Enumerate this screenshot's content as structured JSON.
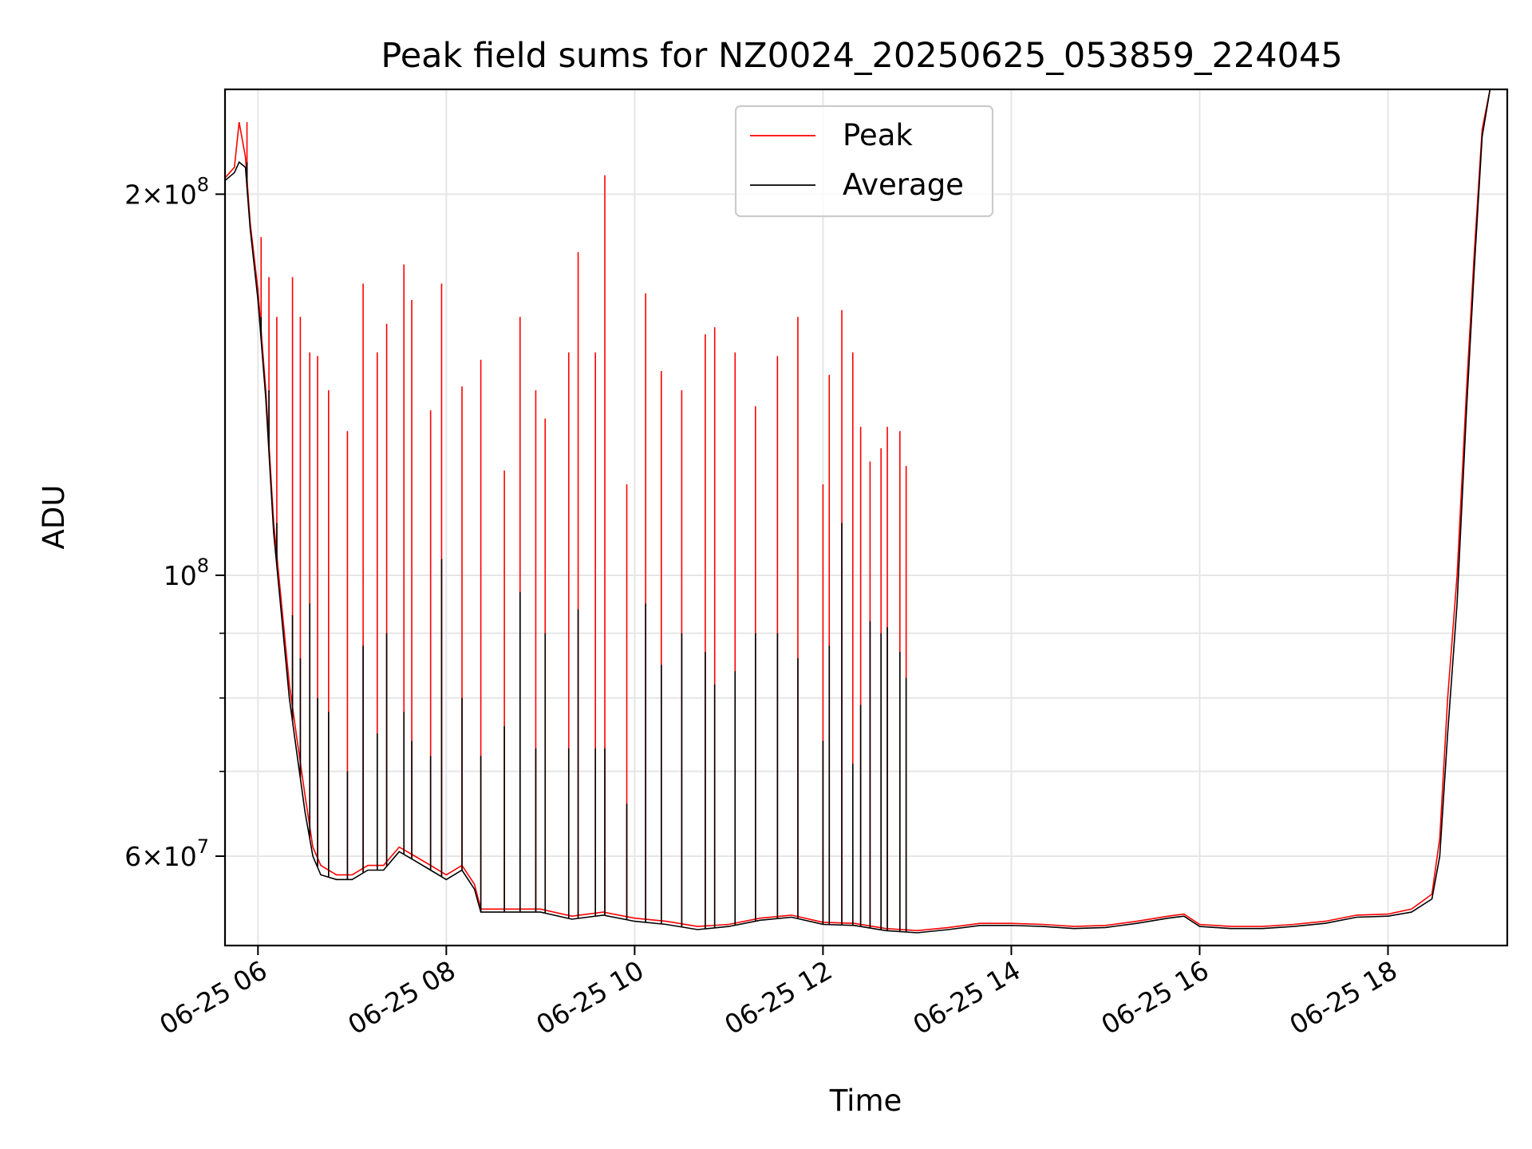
{
  "chart_data": {
    "type": "line",
    "title": "Peak field sums for NZ0024_20250625_053859_224045",
    "xlabel": "Time",
    "ylabel": "ADU",
    "y_scale": "log",
    "ylim": [
      51000000,
      242000000
    ],
    "xlim": [
      "2025-06-25 05:39",
      "2025-06-25 19:16"
    ],
    "x_ticks": [
      {
        "t": "2025-06-25 06:00",
        "label": "06-25 06"
      },
      {
        "t": "2025-06-25 08:00",
        "label": "06-25 08"
      },
      {
        "t": "2025-06-25 10:00",
        "label": "06-25 10"
      },
      {
        "t": "2025-06-25 12:00",
        "label": "06-25 12"
      },
      {
        "t": "2025-06-25 14:00",
        "label": "06-25 14"
      },
      {
        "t": "2025-06-25 16:00",
        "label": "06-25 16"
      },
      {
        "t": "2025-06-25 18:00",
        "label": "06-25 18"
      }
    ],
    "y_ticks_major": [
      {
        "value": 60000000,
        "mant": "6",
        "exp": "7"
      },
      {
        "value": 100000000,
        "mant": "",
        "exp": "8"
      },
      {
        "value": 200000000,
        "mant": "2",
        "exp": "8"
      }
    ],
    "y_ticks_minor": [
      70000000,
      80000000,
      90000000
    ],
    "grid": true,
    "legend_position": "upper-center",
    "series": [
      {
        "name": "Peak",
        "color": "#ff0000",
        "points": [
          [
            "2025-06-25 05:39",
            206000000
          ],
          [
            "2025-06-25 05:45",
            210000000
          ],
          [
            "2025-06-25 05:48",
            228000000
          ],
          [
            "2025-06-25 05:52",
            214000000
          ],
          [
            "2025-06-25 05:55",
            190000000
          ],
          [
            "2025-06-25 06:00",
            168000000
          ],
          [
            "2025-06-25 06:05",
            140000000
          ],
          [
            "2025-06-25 06:10",
            110000000
          ],
          [
            "2025-06-25 06:15",
            95000000
          ],
          [
            "2025-06-25 06:20",
            82000000
          ],
          [
            "2025-06-25 06:25",
            74000000
          ],
          [
            "2025-06-25 06:30",
            67000000
          ],
          [
            "2025-06-25 06:35",
            61000000
          ],
          [
            "2025-06-25 06:40",
            59000000
          ],
          [
            "2025-06-25 06:50",
            58000000
          ],
          [
            "2025-06-25 07:00",
            58000000
          ],
          [
            "2025-06-25 07:10",
            59000000
          ],
          [
            "2025-06-25 07:20",
            59000000
          ],
          [
            "2025-06-25 07:30",
            61000000
          ],
          [
            "2025-06-25 07:40",
            60000000
          ],
          [
            "2025-06-25 07:50",
            59000000
          ],
          [
            "2025-06-25 08:00",
            58000000
          ],
          [
            "2025-06-25 08:10",
            59000000
          ],
          [
            "2025-06-25 08:18",
            57000000
          ],
          [
            "2025-06-25 08:22",
            54500000
          ],
          [
            "2025-06-25 08:40",
            54500000
          ],
          [
            "2025-06-25 09:00",
            54500000
          ],
          [
            "2025-06-25 09:20",
            53800000
          ],
          [
            "2025-06-25 09:40",
            54200000
          ],
          [
            "2025-06-25 10:00",
            53600000
          ],
          [
            "2025-06-25 10:20",
            53300000
          ],
          [
            "2025-06-25 10:40",
            52800000
          ],
          [
            "2025-06-25 11:00",
            53000000
          ],
          [
            "2025-06-25 11:20",
            53600000
          ],
          [
            "2025-06-25 11:40",
            53900000
          ],
          [
            "2025-06-25 12:00",
            53200000
          ],
          [
            "2025-06-25 12:20",
            53100000
          ],
          [
            "2025-06-25 12:40",
            52600000
          ],
          [
            "2025-06-25 13:00",
            52400000
          ],
          [
            "2025-06-25 13:20",
            52700000
          ],
          [
            "2025-06-25 13:40",
            53100000
          ],
          [
            "2025-06-25 14:00",
            53100000
          ],
          [
            "2025-06-25 14:20",
            53000000
          ],
          [
            "2025-06-25 14:40",
            52800000
          ],
          [
            "2025-06-25 15:00",
            52900000
          ],
          [
            "2025-06-25 15:20",
            53300000
          ],
          [
            "2025-06-25 15:40",
            53800000
          ],
          [
            "2025-06-25 15:50",
            54000000
          ],
          [
            "2025-06-25 16:00",
            53000000
          ],
          [
            "2025-06-25 16:20",
            52800000
          ],
          [
            "2025-06-25 16:40",
            52800000
          ],
          [
            "2025-06-25 17:00",
            53000000
          ],
          [
            "2025-06-25 17:20",
            53300000
          ],
          [
            "2025-06-25 17:40",
            53900000
          ],
          [
            "2025-06-25 18:00",
            54000000
          ],
          [
            "2025-06-25 18:15",
            54500000
          ],
          [
            "2025-06-25 18:28",
            56000000
          ],
          [
            "2025-06-25 18:33",
            62000000
          ],
          [
            "2025-06-25 18:38",
            80000000
          ],
          [
            "2025-06-25 18:44",
            100000000
          ],
          [
            "2025-06-25 18:50",
            140000000
          ],
          [
            "2025-06-25 18:55",
            180000000
          ],
          [
            "2025-06-25 19:00",
            225000000
          ],
          [
            "2025-06-25 19:05",
            242000000
          ],
          [
            "2025-06-25 19:16",
            242000000
          ]
        ]
      },
      {
        "name": "Average",
        "color": "#000000",
        "points": [
          [
            "2025-06-25 05:39",
            205000000
          ],
          [
            "2025-06-25 05:45",
            208000000
          ],
          [
            "2025-06-25 05:48",
            212000000
          ],
          [
            "2025-06-25 05:52",
            210000000
          ],
          [
            "2025-06-25 05:55",
            188000000
          ],
          [
            "2025-06-25 06:00",
            165000000
          ],
          [
            "2025-06-25 06:05",
            138000000
          ],
          [
            "2025-06-25 06:10",
            108000000
          ],
          [
            "2025-06-25 06:15",
            93000000
          ],
          [
            "2025-06-25 06:20",
            80000000
          ],
          [
            "2025-06-25 06:25",
            72000000
          ],
          [
            "2025-06-25 06:30",
            65000000
          ],
          [
            "2025-06-25 06:35",
            60000000
          ],
          [
            "2025-06-25 06:40",
            58000000
          ],
          [
            "2025-06-25 06:50",
            57500000
          ],
          [
            "2025-06-25 07:00",
            57500000
          ],
          [
            "2025-06-25 07:10",
            58500000
          ],
          [
            "2025-06-25 07:20",
            58500000
          ],
          [
            "2025-06-25 07:30",
            60500000
          ],
          [
            "2025-06-25 07:40",
            59500000
          ],
          [
            "2025-06-25 07:50",
            58500000
          ],
          [
            "2025-06-25 08:00",
            57500000
          ],
          [
            "2025-06-25 08:10",
            58500000
          ],
          [
            "2025-06-25 08:18",
            56500000
          ],
          [
            "2025-06-25 08:22",
            54200000
          ],
          [
            "2025-06-25 08:40",
            54200000
          ],
          [
            "2025-06-25 09:00",
            54200000
          ],
          [
            "2025-06-25 09:20",
            53500000
          ],
          [
            "2025-06-25 09:40",
            53900000
          ],
          [
            "2025-06-25 10:00",
            53300000
          ],
          [
            "2025-06-25 10:20",
            53000000
          ],
          [
            "2025-06-25 10:40",
            52500000
          ],
          [
            "2025-06-25 11:00",
            52800000
          ],
          [
            "2025-06-25 11:20",
            53400000
          ],
          [
            "2025-06-25 11:40",
            53700000
          ],
          [
            "2025-06-25 12:00",
            53000000
          ],
          [
            "2025-06-25 12:20",
            52900000
          ],
          [
            "2025-06-25 12:40",
            52400000
          ],
          [
            "2025-06-25 13:00",
            52200000
          ],
          [
            "2025-06-25 13:20",
            52500000
          ],
          [
            "2025-06-25 13:40",
            52900000
          ],
          [
            "2025-06-25 14:00",
            52900000
          ],
          [
            "2025-06-25 14:20",
            52800000
          ],
          [
            "2025-06-25 14:40",
            52600000
          ],
          [
            "2025-06-25 15:00",
            52700000
          ],
          [
            "2025-06-25 15:20",
            53100000
          ],
          [
            "2025-06-25 15:40",
            53600000
          ],
          [
            "2025-06-25 15:50",
            53800000
          ],
          [
            "2025-06-25 16:00",
            52800000
          ],
          [
            "2025-06-25 16:20",
            52600000
          ],
          [
            "2025-06-25 16:40",
            52600000
          ],
          [
            "2025-06-25 17:00",
            52800000
          ],
          [
            "2025-06-25 17:20",
            53100000
          ],
          [
            "2025-06-25 17:40",
            53700000
          ],
          [
            "2025-06-25 18:00",
            53800000
          ],
          [
            "2025-06-25 18:15",
            54200000
          ],
          [
            "2025-06-25 18:28",
            55500000
          ],
          [
            "2025-06-25 18:33",
            60000000
          ],
          [
            "2025-06-25 18:38",
            75000000
          ],
          [
            "2025-06-25 18:44",
            95000000
          ],
          [
            "2025-06-25 18:50",
            135000000
          ],
          [
            "2025-06-25 18:55",
            175000000
          ],
          [
            "2025-06-25 19:00",
            222000000
          ],
          [
            "2025-06-25 19:05",
            242000000
          ],
          [
            "2025-06-25 19:16",
            242000000
          ]
        ]
      }
    ],
    "peak_spikes": [
      [
        "2025-06-25 05:53",
        228000000,
        212000000
      ],
      [
        "2025-06-25 06:02",
        185000000,
        160000000
      ],
      [
        "2025-06-25 06:07",
        172000000,
        140000000
      ],
      [
        "2025-06-25 06:12",
        160000000,
        110000000
      ],
      [
        "2025-06-25 06:22",
        172000000,
        93000000
      ],
      [
        "2025-06-25 06:27",
        160000000,
        86000000
      ],
      [
        "2025-06-25 06:33",
        150000000,
        95000000
      ],
      [
        "2025-06-25 06:38",
        149000000,
        80000000
      ],
      [
        "2025-06-25 06:45",
        140000000,
        78000000
      ],
      [
        "2025-06-25 06:57",
        130000000,
        70000000
      ],
      [
        "2025-06-25 07:07",
        170000000,
        88000000
      ],
      [
        "2025-06-25 07:16",
        150000000,
        75000000
      ],
      [
        "2025-06-25 07:22",
        158000000,
        90000000
      ],
      [
        "2025-06-25 07:33",
        176000000,
        78000000
      ],
      [
        "2025-06-25 07:38",
        165000000,
        74000000
      ],
      [
        "2025-06-25 07:50",
        135000000,
        72000000
      ],
      [
        "2025-06-25 07:57",
        170000000,
        103000000
      ],
      [
        "2025-06-25 08:10",
        141000000,
        80000000
      ],
      [
        "2025-06-25 08:22",
        148000000,
        72000000
      ],
      [
        "2025-06-25 08:37",
        121000000,
        76000000
      ],
      [
        "2025-06-25 08:47",
        160000000,
        97000000
      ],
      [
        "2025-06-25 08:57",
        140000000,
        73000000
      ],
      [
        "2025-06-25 09:03",
        133000000,
        90000000
      ],
      [
        "2025-06-25 09:18",
        150000000,
        73000000
      ],
      [
        "2025-06-25 09:24",
        180000000,
        94000000
      ],
      [
        "2025-06-25 09:35",
        150000000,
        73000000
      ],
      [
        "2025-06-25 09:41",
        207000000,
        73000000
      ],
      [
        "2025-06-25 09:55",
        118000000,
        66000000
      ],
      [
        "2025-06-25 10:07",
        167000000,
        95000000
      ],
      [
        "2025-06-25 10:17",
        145000000,
        85000000
      ],
      [
        "2025-06-25 10:30",
        140000000,
        90000000
      ],
      [
        "2025-06-25 10:45",
        155000000,
        87000000
      ],
      [
        "2025-06-25 10:51",
        157000000,
        82000000
      ],
      [
        "2025-06-25 11:04",
        150000000,
        84000000
      ],
      [
        "2025-06-25 11:17",
        136000000,
        90000000
      ],
      [
        "2025-06-25 11:31",
        149000000,
        90000000
      ],
      [
        "2025-06-25 11:44",
        160000000,
        86000000
      ],
      [
        "2025-06-25 12:00",
        118000000,
        74000000
      ],
      [
        "2025-06-25 12:04",
        144000000,
        88000000
      ],
      [
        "2025-06-25 12:12",
        162000000,
        110000000
      ],
      [
        "2025-06-25 12:19",
        150000000,
        71000000
      ],
      [
        "2025-06-25 12:24",
        131000000,
        79000000
      ],
      [
        "2025-06-25 12:30",
        123000000,
        92000000
      ],
      [
        "2025-06-25 12:37",
        126000000,
        90000000
      ],
      [
        "2025-06-25 12:41",
        131000000,
        91000000
      ],
      [
        "2025-06-25 12:49",
        130000000,
        87000000
      ],
      [
        "2025-06-25 12:53",
        122000000,
        83000000
      ]
    ]
  }
}
